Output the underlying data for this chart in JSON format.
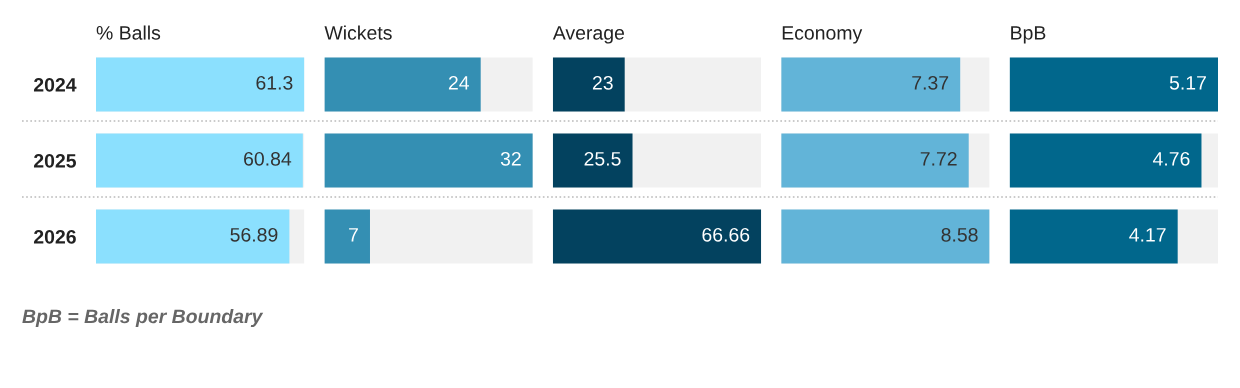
{
  "chart_data": [
    {
      "type": "bar",
      "orientation": "horizontal",
      "title": "% Balls",
      "categories": [
        "2024",
        "2025",
        "2026"
      ],
      "values": [
        61.3,
        60.84,
        56.89
      ],
      "color": "#8be0fe",
      "xlim": [
        0,
        61.3
      ],
      "data_labels": true,
      "tick_labels": "y",
      "annotations": [
        "BpB = Balls per Boundary"
      ]
    },
    {
      "type": "bar",
      "orientation": "horizontal",
      "title": "Wickets",
      "categories": [
        "2024",
        "2025",
        "2026"
      ],
      "values": [
        24,
        32,
        7
      ],
      "color": "#348fb3",
      "xlim": [
        0,
        32
      ],
      "data_labels": true,
      "tick_labels": false
    },
    {
      "type": "bar",
      "orientation": "horizontal",
      "title": "Average",
      "categories": [
        "2024",
        "2025",
        "2026"
      ],
      "values": [
        23,
        25.5,
        66.66
      ],
      "color": "#03425f",
      "xlim": [
        0,
        66.66
      ],
      "data_labels": true,
      "tick_labels": false
    },
    {
      "type": "bar",
      "orientation": "horizontal",
      "title": "Economy",
      "categories": [
        "2024",
        "2025",
        "2026"
      ],
      "values": [
        7.37,
        7.72,
        8.58
      ],
      "color": "#62b4d8",
      "xlim": [
        0,
        8.58
      ],
      "data_labels": true,
      "tick_labels": false
    },
    {
      "type": "bar",
      "orientation": "horizontal",
      "title": "BpB",
      "categories": [
        "2024",
        "2025",
        "2026"
      ],
      "values": [
        5.17,
        4.76,
        4.17
      ],
      "color": "#01678c",
      "xlim": [
        0,
        5.17
      ],
      "data_labels": true,
      "tick_labels": false
    }
  ]
}
